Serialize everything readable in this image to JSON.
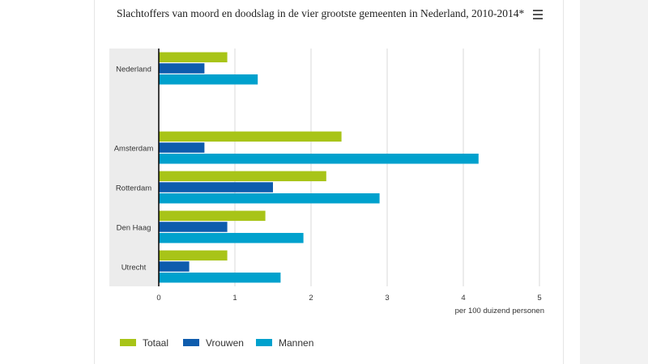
{
  "header": {
    "title": "Slachtoffers van moord en doodslag in de vier grootste gemeenten in Nederland, 2010-2014*",
    "menu_icon": "hamburger-menu-icon"
  },
  "colors": {
    "totaal": "#a8c418",
    "vrouwen": "#0e5cad",
    "mannen": "#00a1cd",
    "category_band": "#ececec",
    "grid": "#d9d9d9",
    "axis": "#000000"
  },
  "chart_data": {
    "type": "bar",
    "orientation": "horizontal",
    "title": "Slachtoffers van moord en doodslag in de vier grootste gemeenten in Nederland, 2010-2014*",
    "categories": [
      "Nederland",
      "",
      "Amsterdam",
      "Rotterdam",
      "Den Haag",
      "Utrecht"
    ],
    "series": [
      {
        "name": "Totaal",
        "values": [
          0.9,
          null,
          2.4,
          2.2,
          1.4,
          0.9
        ]
      },
      {
        "name": "Vrouwen",
        "values": [
          0.6,
          null,
          0.6,
          1.5,
          0.9,
          0.4
        ]
      },
      {
        "name": "Mannen",
        "values": [
          1.3,
          null,
          4.2,
          2.9,
          1.9,
          1.6
        ]
      }
    ],
    "xlabel": "per 100 duizend personen",
    "ylabel": "",
    "xlim": [
      0,
      5
    ],
    "xticks": [
      "0",
      "1",
      "2",
      "3",
      "4",
      "5"
    ],
    "grid": true,
    "legend_position": "bottom-left"
  }
}
